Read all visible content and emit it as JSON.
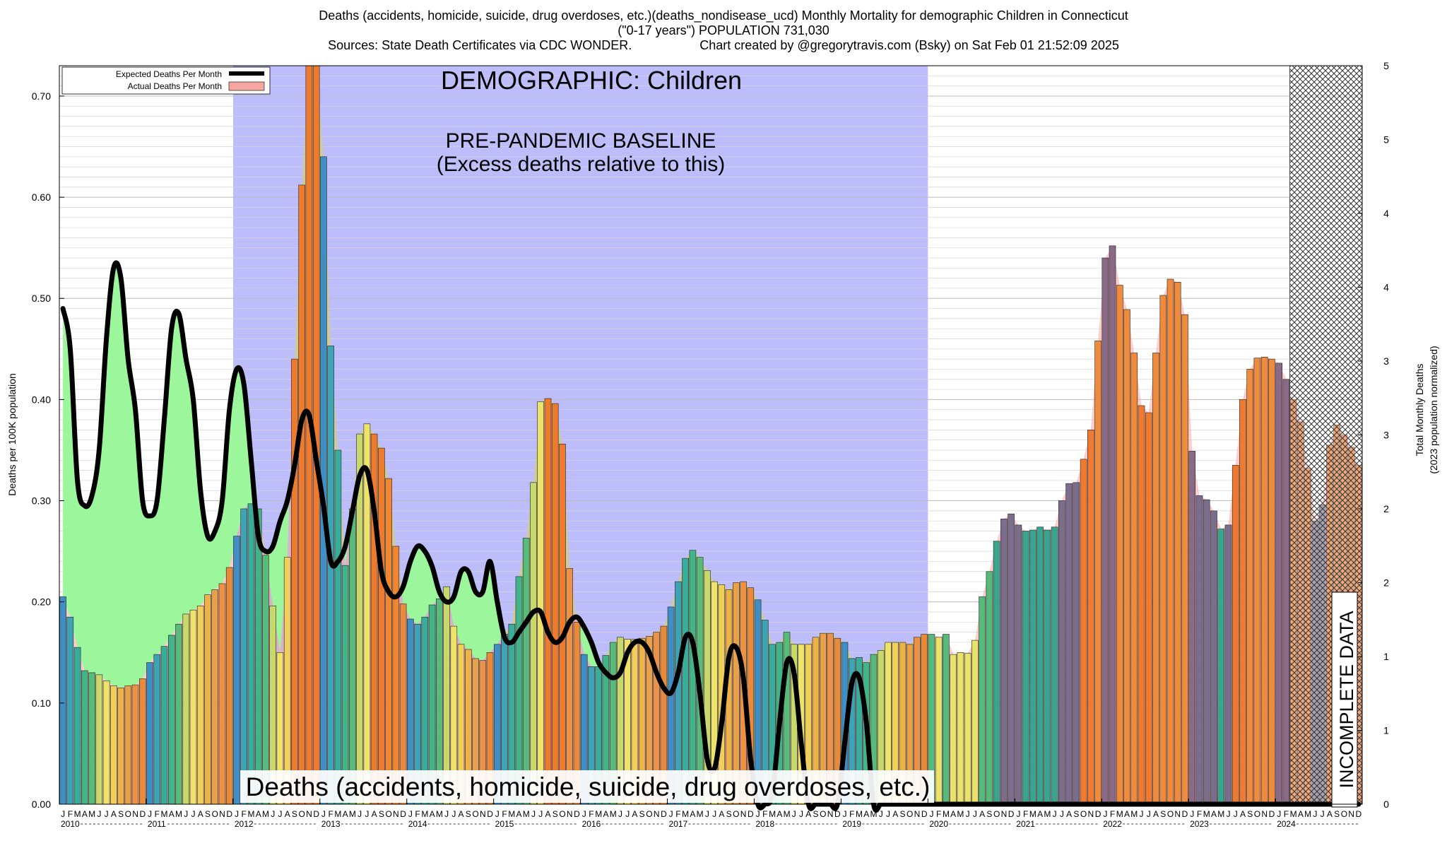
{
  "chart_data": {
    "type": "bar",
    "title": "Deaths (accidents, homicide, suicide, drug overdoses, etc.)(deaths_nondisease_ucd) Monthly Mortality for demographic Children in Connecticut",
    "subtitle": "(\"0-17 years\") POPULATION 731,030",
    "sources": "Sources: State Death Certificates via CDC WONDER.",
    "credit": "Chart created by @gregorytravis.com (Bsky) on Sat Feb 01 21:52:09 2025",
    "ylabel_left": "Deaths per 100K population",
    "ylabel_right_1": "Total Monthly Deaths",
    "ylabel_right_2": "(2023 population normalized)",
    "ylim": [
      0,
      0.73
    ],
    "y_ticks_left": [
      "0.00",
      "0.10",
      "0.20",
      "0.30",
      "0.40",
      "0.50",
      "0.60",
      "0.70"
    ],
    "y_ticks_right": [
      "0",
      "1",
      "1",
      "2",
      "2",
      "3",
      "3",
      "4",
      "4",
      "5",
      "5"
    ],
    "month_letters": [
      "J",
      "F",
      "M",
      "A",
      "M",
      "J",
      "J",
      "A",
      "S",
      "O",
      "N",
      "D"
    ],
    "years": [
      "2010",
      "2011",
      "2012",
      "2013",
      "2014",
      "2015",
      "2016",
      "2017",
      "2018",
      "2019",
      "2020",
      "2021",
      "2022",
      "2023",
      "2024"
    ],
    "legend": [
      {
        "label": "Expected Deaths Per Month",
        "color": "#000000"
      },
      {
        "label": "Actual Deaths Per Month",
        "color": "#f4a6a0"
      }
    ],
    "annotations": {
      "demographic": "DEMOGRAPHIC: Children",
      "baseline_line1": "PRE-PANDEMIC BASELINE",
      "baseline_line2": "(Excess deaths relative to this)",
      "bottom_label": "Deaths (accidents, homicide, suicide, drug overdoses, etc.)",
      "incomplete": "INCOMPLETE DATA"
    },
    "baseline_period": [
      "2012-01",
      "2019-12"
    ],
    "incomplete_period": [
      "2024-03",
      "2024-12"
    ],
    "actual": [
      0.205,
      0.185,
      0.155,
      0.132,
      0.13,
      0.128,
      0.122,
      0.117,
      0.115,
      0.117,
      0.118,
      0.124,
      0.14,
      0.148,
      0.156,
      0.167,
      0.178,
      0.188,
      0.192,
      0.196,
      0.207,
      0.212,
      0.218,
      0.234,
      0.265,
      0.292,
      0.297,
      0.292,
      0.246,
      0.196,
      0.15,
      0.244,
      0.44,
      0.612,
      0.73,
      0.73,
      0.64,
      0.453,
      0.35,
      0.236,
      0.292,
      0.366,
      0.376,
      0.366,
      0.352,
      0.322,
      0.255,
      0.198,
      0.183,
      0.178,
      0.185,
      0.197,
      0.203,
      0.215,
      0.176,
      0.158,
      0.153,
      0.144,
      0.142,
      0.15,
      0.158,
      0.168,
      0.178,
      0.225,
      0.263,
      0.318,
      0.398,
      0.401,
      0.396,
      0.356,
      0.233,
      0.18,
      0.148,
      0.136,
      0.136,
      0.147,
      0.16,
      0.165,
      0.163,
      0.163,
      0.164,
      0.166,
      0.17,
      0.176,
      0.195,
      0.22,
      0.243,
      0.251,
      0.244,
      0.231,
      0.22,
      0.217,
      0.212,
      0.219,
      0.22,
      0.214,
      0.202,
      0.182,
      0.158,
      0.16,
      0.17,
      0.158,
      0.158,
      0.158,
      0.165,
      0.169,
      0.169,
      0.164,
      0.16,
      0.144,
      0.145,
      0.14,
      0.148,
      0.152,
      0.16,
      0.16,
      0.16,
      0.158,
      0.165,
      0.168,
      0.168,
      0.165,
      0.168,
      0.148,
      0.15,
      0.149,
      0.162,
      0.205,
      0.23,
      0.26,
      0.282,
      0.287,
      0.276,
      0.27,
      0.271,
      0.274,
      0.271,
      0.274,
      0.3,
      0.317,
      0.318,
      0.341,
      0.37,
      0.458,
      0.54,
      0.552,
      0.513,
      0.489,
      0.446,
      0.394,
      0.387,
      0.446,
      0.503,
      0.519,
      0.516,
      0.484,
      0.349,
      0.305,
      0.301,
      0.29,
      0.272,
      0.276,
      0.335,
      0.4,
      0.43,
      0.441,
      0.442,
      0.44,
      0.436,
      0.42,
      0.4,
      0.378,
      0.332,
      0.28,
      0.296,
      0.355,
      0.375,
      0.365,
      0.353,
      0.335
    ],
    "expected_curve_monthly": [
      0.49,
      0.45,
      0.32,
      0.295,
      0.305,
      0.35,
      0.46,
      0.53,
      0.52,
      0.44,
      0.39,
      0.3,
      0.285,
      0.3,
      0.38,
      0.47,
      0.485,
      0.44,
      0.4,
      0.31,
      0.265,
      0.27,
      0.3,
      0.39,
      0.43,
      0.415,
      0.34,
      0.265,
      0.25,
      0.255,
      0.28,
      0.3,
      0.335,
      0.38,
      0.385,
      0.34,
      0.295,
      0.24,
      0.24,
      0.255,
      0.29,
      0.325,
      0.33,
      0.29,
      0.23,
      0.21,
      0.205,
      0.215,
      0.24,
      0.255,
      0.25,
      0.235,
      0.21,
      0.2,
      0.205,
      0.23,
      0.23,
      0.21,
      0.21,
      0.24,
      0.2,
      0.165,
      0.16,
      0.17,
      0.18,
      0.19,
      0.19,
      0.17,
      0.16,
      0.165,
      0.18,
      0.185,
      0.175,
      0.16,
      0.14,
      0.13,
      0.125,
      0.13,
      0.15,
      0.16,
      0.16,
      0.15,
      0.13,
      0.115,
      0.11,
      0.13,
      0.165,
      0.16,
      0.11,
      0.045,
      0.035,
      0.08,
      0.145,
      0.155,
      0.125,
      0.045,
      0.0,
      0.0,
      0.01,
      0.08,
      0.14,
      0.13,
      0.06,
      0.0,
      0.0,
      0.0,
      0.0,
      0.0,
      0.06,
      0.12,
      0.125,
      0.08,
      0.0,
      0.0,
      0.0,
      0.0,
      0.0,
      0.0,
      0.0,
      0.0
    ]
  }
}
